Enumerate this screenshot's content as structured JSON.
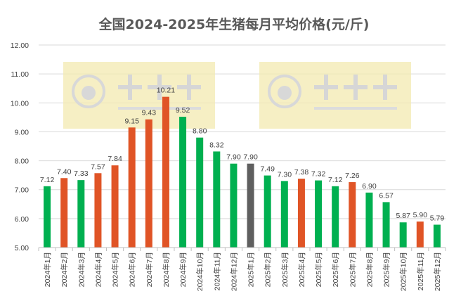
{
  "chart_data": {
    "type": "bar",
    "title": "全国2024-2025年生猪每月平均价格(元/斤)",
    "xlabel": "",
    "ylabel": "",
    "ylim": [
      5,
      12
    ],
    "yticks": [
      "5.00",
      "6.00",
      "7.00",
      "8.00",
      "9.00",
      "10.00",
      "11.00",
      "12.00"
    ],
    "grid": true,
    "legend": "none",
    "categories": [
      "2024年1月",
      "2024年2月",
      "2024年3月",
      "2024年4月",
      "2024年5月",
      "2024年6月",
      "2024年7月",
      "2024年8月",
      "2024年9月",
      "2024年10月",
      "2024年11月",
      "2024年12月",
      "2025年1月",
      "2025年2月",
      "2025年3月",
      "2025年4月",
      "2025年5月",
      "2025年6月",
      "2025年7月",
      "2025年8月",
      "2025年9月",
      "2025年10月",
      "2025年11月",
      "2025年12月"
    ],
    "values": [
      7.12,
      7.4,
      7.33,
      7.57,
      7.84,
      9.15,
      9.43,
      10.21,
      9.52,
      8.8,
      8.32,
      7.9,
      7.9,
      7.49,
      7.3,
      7.38,
      7.32,
      7.12,
      7.26,
      6.9,
      6.57,
      5.87,
      5.9,
      5.79
    ],
    "data_labels": [
      "7.12",
      "7.40",
      "7.33",
      "7.57",
      "7.84",
      "9.15",
      "9.43",
      "10.21",
      "9.52",
      "8.80",
      "8.32",
      "7.90",
      "7.90",
      "7.49",
      "7.30",
      "7.38",
      "7.32",
      "7.12",
      "7.26",
      "6.90",
      "6.57",
      "5.87",
      "5.90",
      "5.79"
    ],
    "bar_colors": [
      "green",
      "orange",
      "green",
      "orange",
      "orange",
      "orange",
      "orange",
      "orange",
      "green",
      "green",
      "green",
      "green",
      "gray",
      "green",
      "green",
      "orange",
      "green",
      "green",
      "orange",
      "green",
      "green",
      "green",
      "orange",
      "green"
    ],
    "colors": {
      "green": "#00b050",
      "orange": "#e05426",
      "gray": "#5f5f5f",
      "grid": "#d9d9d9",
      "text": "#404040"
    }
  },
  "watermark": {
    "brand": "大畜牧",
    "url": "www.dxumu.com"
  }
}
